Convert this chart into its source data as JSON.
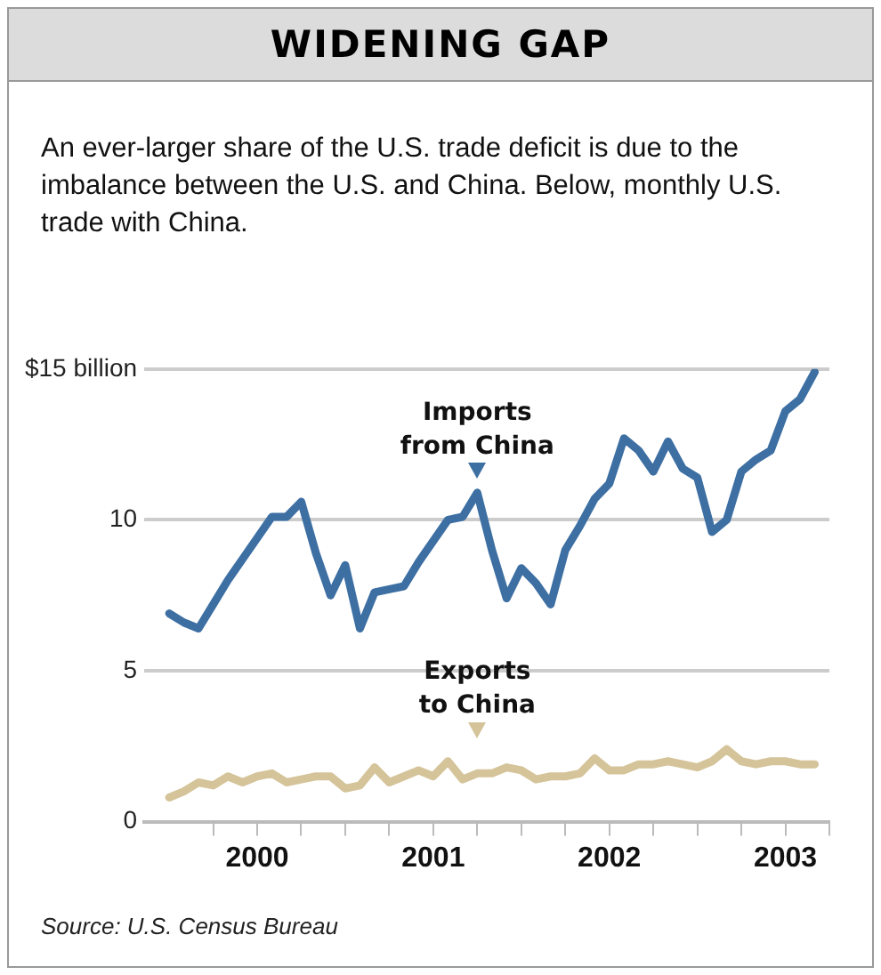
{
  "chart_data": {
    "type": "line",
    "title": "WIDENING GAP",
    "subtitle": "An ever-larger share of the U.S. trade deficit is due to the imbalance between the U.S. and China. Below, monthly U.S. trade with China.",
    "x": [
      "2000-01",
      "2000-02",
      "2000-03",
      "2000-04",
      "2000-05",
      "2000-06",
      "2000-07",
      "2000-08",
      "2000-09",
      "2000-10",
      "2000-11",
      "2000-12",
      "2001-01",
      "2001-02",
      "2001-03",
      "2001-04",
      "2001-05",
      "2001-06",
      "2001-07",
      "2001-08",
      "2001-09",
      "2001-10",
      "2001-11",
      "2001-12",
      "2002-01",
      "2002-02",
      "2002-03",
      "2002-04",
      "2002-05",
      "2002-06",
      "2002-07",
      "2002-08",
      "2002-09",
      "2002-10",
      "2002-11",
      "2002-12",
      "2003-01",
      "2003-02",
      "2003-03",
      "2003-04",
      "2003-05",
      "2003-06",
      "2003-07",
      "2003-08",
      "2003-09"
    ],
    "series": [
      {
        "color": "#3d6fa3",
        "values": [
          6.9,
          6.6,
          6.4,
          7.2,
          8.0,
          8.7,
          9.4,
          10.1,
          10.1,
          10.6,
          8.9,
          7.5,
          8.5,
          6.4,
          7.6,
          7.7,
          7.8,
          8.6,
          9.3,
          10.0,
          10.1,
          10.9,
          9.0,
          7.4,
          8.4,
          7.9,
          7.2,
          9.0,
          9.8,
          10.7,
          11.2,
          12.7,
          12.3,
          11.6,
          12.6,
          11.7,
          11.4,
          9.6,
          10.0,
          11.6,
          12.0,
          12.3,
          13.6,
          14.0,
          14.9
        ]
      },
      {
        "color": "#d5c49a",
        "values": [
          0.8,
          1.0,
          1.3,
          1.2,
          1.5,
          1.3,
          1.5,
          1.6,
          1.3,
          1.4,
          1.5,
          1.5,
          1.1,
          1.2,
          1.8,
          1.3,
          1.5,
          1.7,
          1.5,
          2.0,
          1.4,
          1.6,
          1.6,
          1.8,
          1.7,
          1.4,
          1.5,
          1.5,
          1.6,
          2.1,
          1.7,
          1.7,
          1.9,
          1.9,
          2.0,
          1.9,
          1.8,
          2.0,
          2.4,
          2.0,
          1.9,
          2.0,
          2.0,
          1.9,
          1.9
        ]
      }
    ],
    "xlim": [
      "1999-11-10",
      "2003-10-01"
    ],
    "xticks": [
      {
        "value": "2000-04-01",
        "label": null
      },
      {
        "value": "2000-07-01",
        "label": "2000"
      },
      {
        "value": "2000-10-01",
        "label": null
      },
      {
        "value": "2001-01-01",
        "label": null
      },
      {
        "value": "2001-04-01",
        "label": null
      },
      {
        "value": "2001-07-01",
        "label": "2001"
      },
      {
        "value": "2001-10-01",
        "label": null
      },
      {
        "value": "2002-01-01",
        "label": null
      },
      {
        "value": "2002-04-01",
        "label": null
      },
      {
        "value": "2002-07-01",
        "label": "2002"
      },
      {
        "value": "2002-10-01",
        "label": null
      },
      {
        "value": "2003-01-01",
        "label": null
      },
      {
        "value": "2003-04-01",
        "label": null
      },
      {
        "value": "2003-07-01",
        "label": "2003"
      },
      {
        "value": "2003-10-01",
        "label": null
      }
    ],
    "ylim": [
      0,
      15
    ],
    "yticks": [
      0,
      5,
      10,
      {
        "value": 15,
        "label": "$15 billion"
      }
    ],
    "grid": "y",
    "legend": false,
    "marker": "none",
    "line_style": "solid",
    "annotations": [
      {
        "text": "Imports from China",
        "x": "2001-10",
        "y": 10.9
      },
      {
        "text": "Exports to China",
        "x": "2001-10",
        "y": 1.6
      },
      "Source: U.S. Census Bureau"
    ]
  }
}
